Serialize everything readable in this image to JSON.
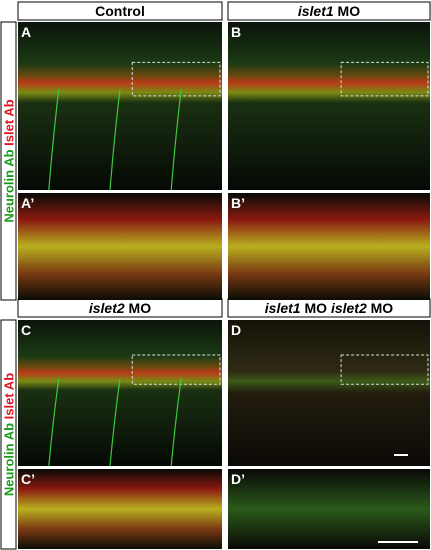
{
  "headers": [
    [
      {
        "text": "Control",
        "italic": false
      }
    ],
    [
      {
        "text": "islet1",
        "italic": true
      },
      {
        "text": " MO",
        "italic": false
      }
    ],
    [
      {
        "text": "islet2",
        "italic": true
      },
      {
        "text": " MO",
        "italic": false
      }
    ],
    [
      {
        "text": "islet1",
        "italic": true
      },
      {
        "text": " MO ",
        "italic": false
      },
      {
        "text": "islet2",
        "italic": true
      },
      {
        "text": " MO",
        "italic": false
      }
    ]
  ],
  "side_labels": [
    [
      {
        "text": "Neurolin Ab",
        "color": "#1a9a1a"
      },
      {
        "text": " Islet Ab",
        "color": "#e0141e"
      }
    ],
    [
      {
        "text": "Neurolin Ab",
        "color": "#1a9a1a"
      },
      {
        "text": " Islet Ab",
        "color": "#e0141e"
      }
    ]
  ],
  "panels": [
    {
      "letter": "A"
    },
    {
      "letter": "A’"
    },
    {
      "letter": "B"
    },
    {
      "letter": "B’"
    },
    {
      "letter": "C"
    },
    {
      "letter": "C’"
    },
    {
      "letter": "D"
    },
    {
      "letter": "D’"
    }
  ]
}
